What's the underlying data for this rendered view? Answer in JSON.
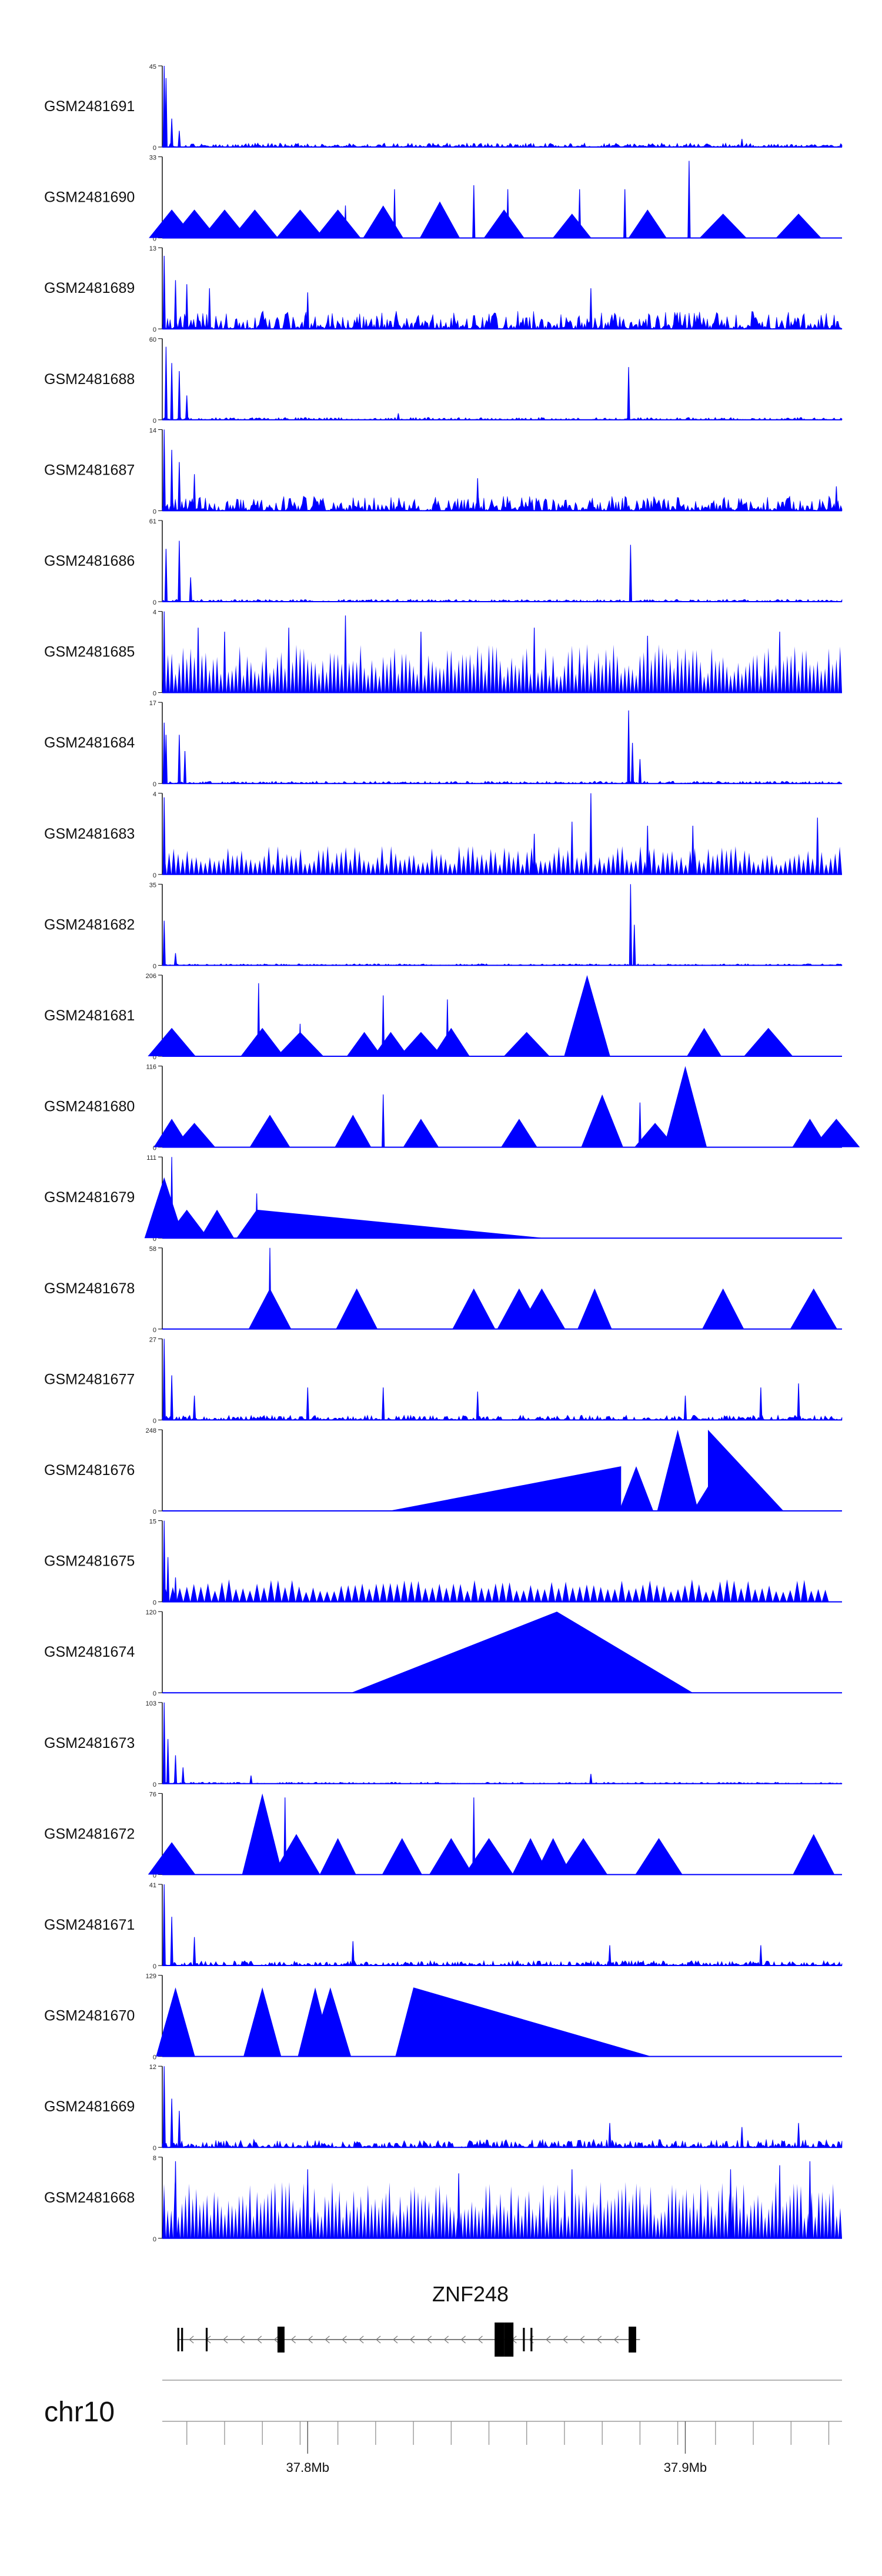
{
  "chart_data": {
    "type": "area",
    "title": "",
    "xlabel": "",
    "ylabel": "",
    "xlim": [
      37.7615,
      37.9415
    ],
    "x_unit": "Mb",
    "color": "#0000FF",
    "tracks": [
      {
        "name": "GSM2481691",
        "ymax": 45,
        "style": "dense",
        "seed": 1,
        "base": 0.05,
        "spikes": [
          [
            37.762,
            1.0
          ],
          [
            37.7625,
            0.85
          ],
          [
            37.764,
            0.35
          ],
          [
            37.766,
            0.2
          ],
          [
            37.915,
            0.1
          ]
        ]
      },
      {
        "name": "GSM2481690",
        "ymax": 33,
        "style": "triangles",
        "seed": 2,
        "peaks": [
          [
            37.764,
            0.35
          ],
          [
            37.77,
            0.35
          ],
          [
            37.778,
            0.35
          ],
          [
            37.786,
            0.35
          ],
          [
            37.798,
            0.35
          ],
          [
            37.808,
            0.35
          ],
          [
            37.82,
            0.4
          ],
          [
            37.835,
            0.45
          ],
          [
            37.852,
            0.35
          ],
          [
            37.87,
            0.3
          ],
          [
            37.89,
            0.35
          ],
          [
            37.91,
            0.3
          ],
          [
            37.93,
            0.3
          ]
        ],
        "spikes": [
          [
            37.823,
            0.6
          ],
          [
            37.844,
            0.65
          ],
          [
            37.853,
            0.6
          ],
          [
            37.872,
            0.6
          ],
          [
            37.884,
            0.6
          ],
          [
            37.901,
            0.95
          ],
          [
            37.81,
            0.4
          ]
        ]
      },
      {
        "name": "GSM2481689",
        "ymax": 13,
        "style": "dense",
        "seed": 3,
        "base": 0.22,
        "spikes": [
          [
            37.762,
            0.9
          ],
          [
            37.765,
            0.6
          ],
          [
            37.768,
            0.55
          ],
          [
            37.774,
            0.5
          ],
          [
            37.8,
            0.45
          ],
          [
            37.875,
            0.5
          ]
        ]
      },
      {
        "name": "GSM2481688",
        "ymax": 60,
        "style": "dense",
        "seed": 4,
        "base": 0.03,
        "spikes": [
          [
            37.7625,
            0.9
          ],
          [
            37.764,
            0.7
          ],
          [
            37.766,
            0.6
          ],
          [
            37.768,
            0.3
          ],
          [
            37.885,
            0.65
          ],
          [
            37.824,
            0.08
          ]
        ]
      },
      {
        "name": "GSM2481687",
        "ymax": 14,
        "style": "dense",
        "seed": 5,
        "base": 0.18,
        "spikes": [
          [
            37.762,
            1.0
          ],
          [
            37.764,
            0.75
          ],
          [
            37.766,
            0.6
          ],
          [
            37.77,
            0.45
          ],
          [
            37.845,
            0.4
          ],
          [
            37.94,
            0.3
          ]
        ]
      },
      {
        "name": "GSM2481686",
        "ymax": 61,
        "style": "dense",
        "seed": 6,
        "base": 0.03,
        "spikes": [
          [
            37.7625,
            0.65
          ],
          [
            37.766,
            0.75
          ],
          [
            37.769,
            0.3
          ],
          [
            37.8855,
            0.7
          ]
        ]
      },
      {
        "name": "GSM2481685",
        "ymax": 4,
        "style": "triangles",
        "seed": 7,
        "peaks": [],
        "density": 180,
        "heightMin": 0.2,
        "heightMax": 0.6,
        "spikes": [
          [
            37.762,
            1.0
          ],
          [
            37.771,
            0.8
          ],
          [
            37.778,
            0.75
          ],
          [
            37.795,
            0.8
          ],
          [
            37.81,
            0.95
          ],
          [
            37.83,
            0.75
          ],
          [
            37.86,
            0.8
          ],
          [
            37.89,
            0.7
          ],
          [
            37.925,
            0.75
          ]
        ]
      },
      {
        "name": "GSM2481684",
        "ymax": 17,
        "style": "dense",
        "seed": 8,
        "base": 0.03,
        "spikes": [
          [
            37.762,
            0.75
          ],
          [
            37.7625,
            0.6
          ],
          [
            37.766,
            0.6
          ],
          [
            37.7675,
            0.4
          ],
          [
            37.885,
            0.9
          ],
          [
            37.886,
            0.5
          ],
          [
            37.888,
            0.3
          ]
        ]
      },
      {
        "name": "GSM2481683",
        "ymax": 4,
        "style": "triangles",
        "seed": 9,
        "peaks": [],
        "density": 150,
        "heightMin": 0.12,
        "heightMax": 0.35,
        "spikes": [
          [
            37.762,
            0.95
          ],
          [
            37.875,
            1.0
          ],
          [
            37.87,
            0.65
          ],
          [
            37.89,
            0.6
          ],
          [
            37.902,
            0.6
          ],
          [
            37.935,
            0.7
          ],
          [
            37.86,
            0.5
          ]
        ]
      },
      {
        "name": "GSM2481682",
        "ymax": 35,
        "style": "dense",
        "seed": 10,
        "base": 0.02,
        "spikes": [
          [
            37.762,
            0.55
          ],
          [
            37.765,
            0.15
          ],
          [
            37.8855,
            1.0
          ],
          [
            37.8865,
            0.5
          ]
        ]
      },
      {
        "name": "GSM2481681",
        "ymax": 206,
        "style": "triangles",
        "seed": 11,
        "peaks": [
          [
            37.764,
            0.35
          ],
          [
            37.788,
            0.35
          ],
          [
            37.798,
            0.3
          ],
          [
            37.815,
            0.3
          ],
          [
            37.822,
            0.3
          ],
          [
            37.83,
            0.3
          ],
          [
            37.838,
            0.35
          ],
          [
            37.858,
            0.3
          ],
          [
            37.874,
            1.0
          ],
          [
            37.905,
            0.35
          ],
          [
            37.922,
            0.35
          ]
        ],
        "spikes": [
          [
            37.787,
            0.9
          ],
          [
            37.82,
            0.75
          ],
          [
            37.837,
            0.7
          ],
          [
            37.798,
            0.4
          ]
        ]
      },
      {
        "name": "GSM2481680",
        "ymax": 116,
        "style": "triangles",
        "seed": 12,
        "peaks": [
          [
            37.764,
            0.35
          ],
          [
            37.77,
            0.3
          ],
          [
            37.79,
            0.4
          ],
          [
            37.812,
            0.4
          ],
          [
            37.83,
            0.35
          ],
          [
            37.856,
            0.35
          ],
          [
            37.878,
            0.65
          ],
          [
            37.892,
            0.3
          ],
          [
            37.9,
            1.0
          ],
          [
            37.933,
            0.35
          ],
          [
            37.94,
            0.35
          ]
        ],
        "spikes": [
          [
            37.82,
            0.65
          ],
          [
            37.888,
            0.55
          ]
        ]
      },
      {
        "name": "GSM2481679",
        "ymax": 111,
        "style": "triangles",
        "seed": 13,
        "peaks": [
          [
            37.762,
            0.75
          ],
          [
            37.768,
            0.35
          ],
          [
            37.776,
            0.35
          ],
          [
            37.7865,
            0.35
          ]
        ],
        "ramps": [
          [
            37.7865,
            37.863,
            0.35,
            0.0
          ]
        ],
        "spikes": [
          [
            37.764,
            1.0
          ],
          [
            37.7865,
            0.55
          ]
        ]
      },
      {
        "name": "GSM2481678",
        "ymax": 58,
        "style": "triangles",
        "seed": 14,
        "peaks": [
          [
            37.79,
            0.5
          ],
          [
            37.813,
            0.5
          ],
          [
            37.844,
            0.5
          ],
          [
            37.856,
            0.5
          ],
          [
            37.862,
            0.5
          ],
          [
            37.876,
            0.5
          ],
          [
            37.91,
            0.5
          ],
          [
            37.934,
            0.5
          ]
        ],
        "spikes": [
          [
            37.79,
            1.0
          ]
        ]
      },
      {
        "name": "GSM2481677",
        "ymax": 27,
        "style": "dense",
        "seed": 15,
        "base": 0.06,
        "spikes": [
          [
            37.762,
            1.0
          ],
          [
            37.764,
            0.55
          ],
          [
            37.77,
            0.3
          ],
          [
            37.8,
            0.4
          ],
          [
            37.82,
            0.4
          ],
          [
            37.845,
            0.35
          ],
          [
            37.9,
            0.3
          ],
          [
            37.92,
            0.4
          ],
          [
            37.93,
            0.45
          ]
        ]
      },
      {
        "name": "GSM2481676",
        "ymax": 248,
        "style": "triangles",
        "seed": 16,
        "peaks": [
          [
            37.887,
            0.55
          ],
          [
            37.898,
            1.0
          ],
          [
            37.908,
            0.45
          ]
        ],
        "ramps": [
          [
            37.8215,
            37.883,
            0.0,
            0.55
          ],
          [
            37.906,
            37.926,
            1.0,
            0.0
          ]
        ],
        "spikes": []
      },
      {
        "name": "GSM2481675",
        "ymax": 15,
        "style": "triangles",
        "seed": 17,
        "peaks": [],
        "density": 95,
        "heightMin": 0.12,
        "heightMax": 0.28,
        "xEnd": 37.938,
        "spikes": [
          [
            37.762,
            1.0
          ],
          [
            37.763,
            0.55
          ],
          [
            37.765,
            0.3
          ]
        ]
      },
      {
        "name": "GSM2481674",
        "ymax": 120,
        "style": "triangles",
        "seed": 18,
        "peaks": [
          [
            37.866,
            1.0
          ]
        ],
        "ramps": [
          [
            37.8115,
            37.866,
            0.0,
            1.0
          ],
          [
            37.866,
            37.902,
            1.0,
            0.0
          ]
        ],
        "spikes": []
      },
      {
        "name": "GSM2481673",
        "ymax": 103,
        "style": "dense",
        "seed": 19,
        "base": 0.02,
        "spikes": [
          [
            37.762,
            1.0
          ],
          [
            37.763,
            0.55
          ],
          [
            37.765,
            0.35
          ],
          [
            37.767,
            0.2
          ],
          [
            37.785,
            0.1
          ],
          [
            37.875,
            0.12
          ]
        ]
      },
      {
        "name": "GSM2481672",
        "ymax": 76,
        "style": "triangles",
        "seed": 20,
        "peaks": [
          [
            37.764,
            0.4
          ],
          [
            37.788,
            1.0
          ],
          [
            37.797,
            0.5
          ],
          [
            37.808,
            0.45
          ],
          [
            37.825,
            0.45
          ],
          [
            37.838,
            0.45
          ],
          [
            37.848,
            0.45
          ],
          [
            37.859,
            0.45
          ],
          [
            37.865,
            0.45
          ],
          [
            37.873,
            0.45
          ],
          [
            37.893,
            0.45
          ],
          [
            37.934,
            0.5
          ]
        ],
        "spikes": [
          [
            37.794,
            0.95
          ],
          [
            37.844,
            0.95
          ]
        ]
      },
      {
        "name": "GSM2481671",
        "ymax": 41,
        "style": "dense",
        "seed": 21,
        "base": 0.06,
        "spikes": [
          [
            37.762,
            1.0
          ],
          [
            37.764,
            0.6
          ],
          [
            37.77,
            0.35
          ],
          [
            37.812,
            0.3
          ],
          [
            37.88,
            0.25
          ],
          [
            37.92,
            0.25
          ]
        ]
      },
      {
        "name": "GSM2481670",
        "ymax": 129,
        "style": "triangles",
        "seed": 22,
        "peaks": [
          [
            37.765,
            0.85
          ],
          [
            37.788,
            0.85
          ],
          [
            37.802,
            0.85
          ],
          [
            37.806,
            0.85
          ],
          [
            37.828,
            0.85
          ]
        ],
        "ramps": [
          [
            37.828,
            37.891,
            0.85,
            0.0
          ]
        ],
        "spikes": []
      },
      {
        "name": "GSM2481669",
        "ymax": 12,
        "style": "dense",
        "seed": 23,
        "base": 0.1,
        "spikes": [
          [
            37.762,
            1.0
          ],
          [
            37.764,
            0.6
          ],
          [
            37.766,
            0.45
          ],
          [
            37.88,
            0.3
          ],
          [
            37.915,
            0.25
          ],
          [
            37.93,
            0.3
          ]
        ]
      },
      {
        "name": "GSM2481668",
        "ymax": 8,
        "style": "triangles",
        "seed": 24,
        "peaks": [],
        "density": 190,
        "heightMin": 0.25,
        "heightMax": 0.7,
        "spikes": [
          [
            37.765,
            0.95
          ],
          [
            37.8,
            0.85
          ],
          [
            37.84,
            0.8
          ],
          [
            37.87,
            0.85
          ],
          [
            37.912,
            0.85
          ],
          [
            37.925,
            0.9
          ],
          [
            37.933,
            0.95
          ]
        ]
      }
    ],
    "gene_track": {
      "label": "ZNF248",
      "start": 37.766,
      "end": 37.888,
      "strand": "-",
      "exons": [
        [
          37.7655,
          37.766,
          "tall"
        ],
        [
          37.7665,
          37.767,
          "tall"
        ],
        [
          37.773,
          37.7735,
          "tall"
        ],
        [
          37.792,
          37.793,
          "wide"
        ],
        [
          37.8495,
          37.852,
          "big"
        ],
        [
          37.852,
          37.854,
          "big"
        ],
        [
          37.857,
          37.8575,
          "tall"
        ],
        [
          37.859,
          37.8595,
          "tall"
        ],
        [
          37.885,
          37.887,
          "wide"
        ]
      ]
    },
    "chromosome": "chr10",
    "axis": {
      "minor_ticks": [
        37.768,
        37.778,
        37.788,
        37.798,
        37.808,
        37.818,
        37.828,
        37.838,
        37.848,
        37.858,
        37.868,
        37.878,
        37.888,
        37.898,
        37.908,
        37.918,
        37.928,
        37.938
      ],
      "major_ticks": [
        37.8,
        37.9
      ],
      "major_labels": [
        "37.8Mb",
        "37.9Mb"
      ]
    }
  }
}
